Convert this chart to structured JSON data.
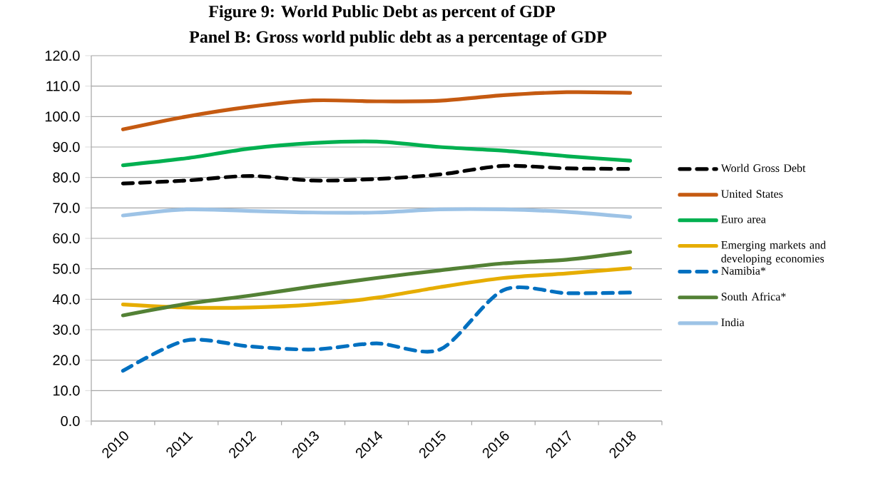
{
  "chart_data": {
    "type": "line",
    "title": "Figure 9: World Public Debt as percent of GDP",
    "subtitle": "Panel B: Gross world public debt as a percentage of GDP",
    "categories": [
      "2010",
      "2011",
      "2012",
      "2013",
      "2014",
      "2015",
      "2016",
      "2017",
      "2018"
    ],
    "ylim": [
      0,
      120
    ],
    "yticks": [
      {
        "value": 0,
        "label": "0.0"
      },
      {
        "value": 10,
        "label": "10.0"
      },
      {
        "value": 20,
        "label": "20.0"
      },
      {
        "value": 30,
        "label": "30.0"
      },
      {
        "value": 40,
        "label": "40.0"
      },
      {
        "value": 50,
        "label": "50.0"
      },
      {
        "value": 60,
        "label": "60.0"
      },
      {
        "value": 70,
        "label": "70.0"
      },
      {
        "value": 80,
        "label": "80.0"
      },
      {
        "value": 90,
        "label": "90.0"
      },
      {
        "value": 100,
        "label": "100.0"
      },
      {
        "value": 110,
        "label": "110.0"
      },
      {
        "value": 120,
        "label": "120.0"
      }
    ],
    "grid": "y",
    "legend": "right",
    "series": [
      {
        "name": "World Gross Debt",
        "color": "#000000",
        "line_style": "dashed",
        "values": [
          78,
          79,
          80.5,
          79,
          79.5,
          81,
          83.8,
          83,
          82.8
        ]
      },
      {
        "name": "United States",
        "color": "#c55a11",
        "values": [
          95.8,
          100,
          103.2,
          105.3,
          105,
          105.2,
          107,
          108,
          107.8
        ]
      },
      {
        "name": "Euro area",
        "color": "#00b050",
        "values": [
          84,
          86.3,
          89.5,
          91.3,
          91.8,
          90,
          88.8,
          87,
          85.5
        ]
      },
      {
        "name": "Emerging markets and developing economies",
        "color": "#e6ad00",
        "values": [
          38.3,
          37.3,
          37.3,
          38.3,
          40.5,
          44,
          47,
          48.5,
          50.2
        ]
      },
      {
        "name": "Namibia*",
        "color": "#0070c0",
        "line_style": "dashed",
        "values": [
          16.5,
          26.5,
          24.5,
          23.5,
          25.5,
          23.5,
          43,
          42,
          42.2
        ]
      },
      {
        "name": "South Africa*",
        "color": "#538135",
        "values": [
          34.7,
          38.5,
          41.2,
          44.2,
          47,
          49.5,
          51.8,
          53,
          55.5
        ]
      },
      {
        "name": "India",
        "color": "#9dc3e6",
        "values": [
          67.5,
          69.5,
          69,
          68.5,
          68.5,
          69.5,
          69.5,
          68.7,
          67
        ]
      }
    ]
  }
}
